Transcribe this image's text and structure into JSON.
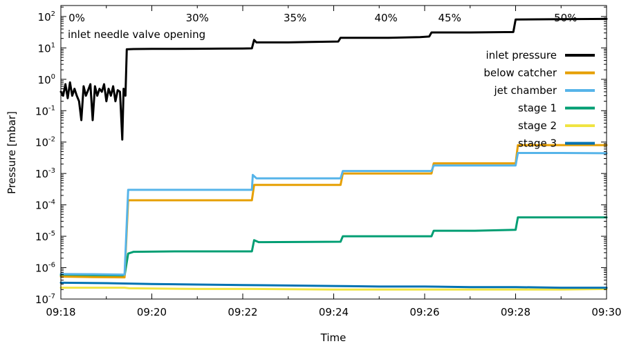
{
  "chart_data": {
    "type": "line",
    "xlabel": "Time",
    "ylabel": "Pressure [mbar]",
    "x_range_minutes": [
      0,
      12
    ],
    "x_ticks": [
      {
        "t": 0,
        "label": "09:18"
      },
      {
        "t": 2,
        "label": "09:20"
      },
      {
        "t": 4,
        "label": "09:22"
      },
      {
        "t": 6,
        "label": "09:24"
      },
      {
        "t": 8,
        "label": "09:26"
      },
      {
        "t": 10,
        "label": "09:28"
      },
      {
        "t": 12,
        "label": "09:30"
      }
    ],
    "y_scale": "log",
    "y_exp_range": [
      -7,
      2.35
    ],
    "y_ticks": [
      {
        "exp": 2,
        "base": "10",
        "sup": "2"
      },
      {
        "exp": 1,
        "base": "10",
        "sup": "1"
      },
      {
        "exp": 0,
        "base": "10",
        "sup": "0"
      },
      {
        "exp": -1,
        "base": "10",
        "sup": "-1"
      },
      {
        "exp": -2,
        "base": "10",
        "sup": "-2"
      },
      {
        "exp": -3,
        "base": "10",
        "sup": "-3"
      },
      {
        "exp": -4,
        "base": "10",
        "sup": "-4"
      },
      {
        "exp": -5,
        "base": "10",
        "sup": "-5"
      },
      {
        "exp": -6,
        "base": "10",
        "sup": "-6"
      },
      {
        "exp": -7,
        "base": "10",
        "sup": "-7"
      }
    ],
    "annotations": {
      "caption": "inlet needle valve opening",
      "openings": [
        {
          "t": 0.35,
          "label": "0%"
        },
        {
          "t": 3.0,
          "label": "30%"
        },
        {
          "t": 5.15,
          "label": "35%"
        },
        {
          "t": 7.15,
          "label": "40%"
        },
        {
          "t": 8.55,
          "label": "45%"
        },
        {
          "t": 11.1,
          "label": "50%"
        }
      ]
    },
    "legend_position": "right",
    "series": [
      {
        "name": "inlet pressure",
        "color": "#000000",
        "points": [
          [
            0.0,
            0.4
          ],
          [
            0.05,
            0.3
          ],
          [
            0.1,
            0.7
          ],
          [
            0.15,
            0.25
          ],
          [
            0.2,
            0.8
          ],
          [
            0.25,
            0.3
          ],
          [
            0.3,
            0.5
          ],
          [
            0.35,
            0.3
          ],
          [
            0.4,
            0.2
          ],
          [
            0.45,
            0.05
          ],
          [
            0.5,
            0.6
          ],
          [
            0.55,
            0.3
          ],
          [
            0.6,
            0.45
          ],
          [
            0.65,
            0.7
          ],
          [
            0.7,
            0.05
          ],
          [
            0.75,
            0.6
          ],
          [
            0.8,
            0.3
          ],
          [
            0.85,
            0.5
          ],
          [
            0.9,
            0.4
          ],
          [
            0.95,
            0.7
          ],
          [
            1.0,
            0.2
          ],
          [
            1.05,
            0.5
          ],
          [
            1.1,
            0.3
          ],
          [
            1.15,
            0.6
          ],
          [
            1.2,
            0.2
          ],
          [
            1.25,
            0.45
          ],
          [
            1.3,
            0.4
          ],
          [
            1.35,
            0.012
          ],
          [
            1.38,
            0.5
          ],
          [
            1.42,
            0.3
          ],
          [
            1.45,
            9
          ],
          [
            1.6,
            9.2
          ],
          [
            2.0,
            9.3
          ],
          [
            2.5,
            9.3
          ],
          [
            3.0,
            9.4
          ],
          [
            3.5,
            9.5
          ],
          [
            4.0,
            9.6
          ],
          [
            4.2,
            9.7
          ],
          [
            4.25,
            18
          ],
          [
            4.3,
            15
          ],
          [
            5.0,
            15
          ],
          [
            5.5,
            15.5
          ],
          [
            6.1,
            16
          ],
          [
            6.15,
            21
          ],
          [
            6.6,
            21
          ],
          [
            7.2,
            21
          ],
          [
            7.9,
            22
          ],
          [
            8.1,
            23
          ],
          [
            8.15,
            31
          ],
          [
            9.0,
            31
          ],
          [
            9.95,
            32
          ],
          [
            10.0,
            80
          ],
          [
            11.0,
            82
          ],
          [
            12.0,
            84
          ]
        ]
      },
      {
        "name": "below catcher",
        "color": "#E69F00",
        "points": [
          [
            0.0,
            5.2e-07
          ],
          [
            0.7,
            5e-07
          ],
          [
            1.4,
            4.9e-07
          ],
          [
            1.48,
            0.00014
          ],
          [
            2.5,
            0.00014
          ],
          [
            4.2,
            0.00014
          ],
          [
            4.25,
            0.00043
          ],
          [
            5.5,
            0.00043
          ],
          [
            6.15,
            0.00043
          ],
          [
            6.2,
            0.001
          ],
          [
            7.2,
            0.001
          ],
          [
            8.15,
            0.001
          ],
          [
            8.2,
            0.0021
          ],
          [
            9.1,
            0.0021
          ],
          [
            10.0,
            0.0021
          ],
          [
            10.05,
            0.008
          ],
          [
            11.0,
            0.008
          ],
          [
            12.0,
            0.008
          ]
        ]
      },
      {
        "name": "jet chamber",
        "color": "#56B4E9",
        "points": [
          [
            0.0,
            6.3e-07
          ],
          [
            0.7,
            6.2e-07
          ],
          [
            1.4,
            6e-07
          ],
          [
            1.48,
            0.0003
          ],
          [
            2.5,
            0.0003
          ],
          [
            4.2,
            0.0003
          ],
          [
            4.22,
            0.0009
          ],
          [
            4.3,
            0.0007
          ],
          [
            5.5,
            0.0007
          ],
          [
            6.15,
            0.0007
          ],
          [
            6.2,
            0.0012
          ],
          [
            7.2,
            0.0012
          ],
          [
            8.15,
            0.0012
          ],
          [
            8.2,
            0.0018
          ],
          [
            9.1,
            0.0018
          ],
          [
            10.0,
            0.0018
          ],
          [
            10.05,
            0.0045
          ],
          [
            11.0,
            0.0045
          ],
          [
            12.0,
            0.0044
          ]
        ]
      },
      {
        "name": "stage 1",
        "color": "#009E73",
        "points": [
          [
            0.0,
            5.8e-07
          ],
          [
            0.7,
            5.6e-07
          ],
          [
            1.4,
            5.5e-07
          ],
          [
            1.48,
            2.8e-06
          ],
          [
            1.6,
            3.2e-06
          ],
          [
            2.5,
            3.3e-06
          ],
          [
            4.2,
            3.3e-06
          ],
          [
            4.25,
            7.5e-06
          ],
          [
            4.35,
            6.5e-06
          ],
          [
            5.5,
            6.6e-06
          ],
          [
            6.15,
            6.7e-06
          ],
          [
            6.2,
            1e-05
          ],
          [
            7.2,
            1e-05
          ],
          [
            8.15,
            1e-05
          ],
          [
            8.2,
            1.5e-05
          ],
          [
            9.1,
            1.5e-05
          ],
          [
            10.0,
            1.6e-05
          ],
          [
            10.05,
            4e-05
          ],
          [
            11.0,
            4e-05
          ],
          [
            12.0,
            4e-05
          ]
        ]
      },
      {
        "name": "stage 2",
        "color": "#F0E442",
        "points": [
          [
            0.0,
            2.3e-07
          ],
          [
            1.4,
            2.3e-07
          ],
          [
            1.5,
            2.2e-07
          ],
          [
            3.0,
            2.1e-07
          ],
          [
            4.2,
            2.1e-07
          ],
          [
            6.0,
            2e-07
          ],
          [
            8.0,
            2e-07
          ],
          [
            10.0,
            2e-07
          ],
          [
            11.0,
            2e-07
          ],
          [
            12.0,
            2.1e-07
          ]
        ]
      },
      {
        "name": "stage 3",
        "color": "#0072B2",
        "points": [
          [
            0.0,
            3.3e-07
          ],
          [
            1.0,
            3.2e-07
          ],
          [
            2.0,
            3e-07
          ],
          [
            3.0,
            2.9e-07
          ],
          [
            4.0,
            2.8e-07
          ],
          [
            5.0,
            2.7e-07
          ],
          [
            6.0,
            2.6e-07
          ],
          [
            7.0,
            2.5e-07
          ],
          [
            8.0,
            2.5e-07
          ],
          [
            9.0,
            2.4e-07
          ],
          [
            10.0,
            2.4e-07
          ],
          [
            11.0,
            2.3e-07
          ],
          [
            12.0,
            2.3e-07
          ]
        ]
      }
    ]
  }
}
